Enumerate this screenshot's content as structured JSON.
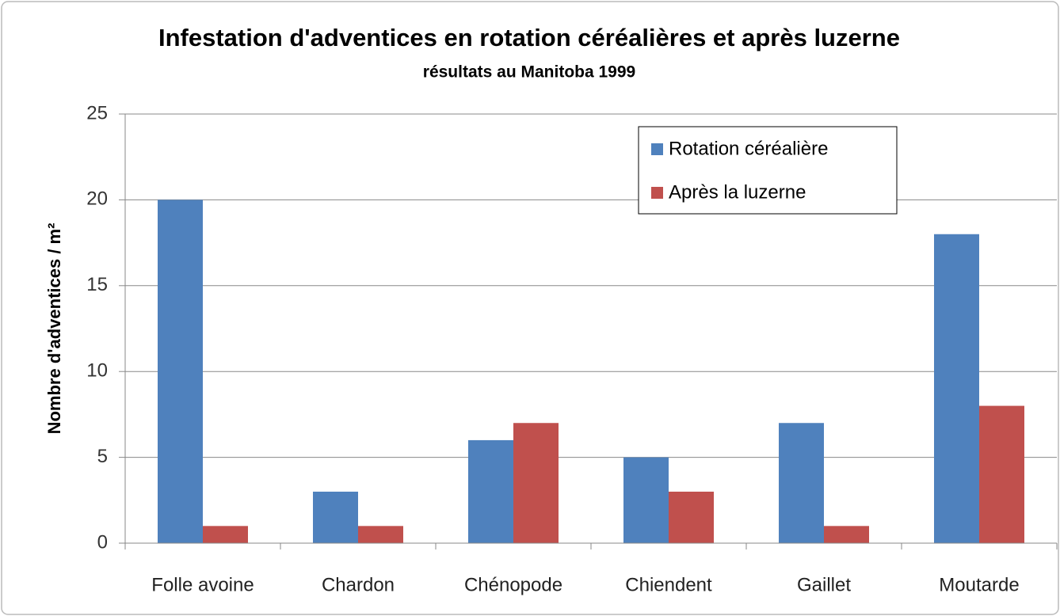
{
  "chart_data": {
    "type": "bar",
    "title": "Infestation d'adventices en rotation céréalières et après luzerne",
    "subtitle": "résultats  au Manitoba 1999",
    "y_label": "Nombre d'adventices / m²",
    "categories": [
      "Folle avoine",
      "Chardon",
      "Chénopode",
      "Chiendent",
      "Gaillet",
      "Moutarde"
    ],
    "series": [
      {
        "name": "Rotation céréalière",
        "color": "#4f81bd",
        "values": [
          20,
          3,
          6,
          5,
          7,
          18
        ]
      },
      {
        "name": "Après la luzerne",
        "color": "#c0504d",
        "values": [
          1,
          1,
          7,
          3,
          1,
          8
        ]
      }
    ],
    "ylim": [
      0,
      25
    ],
    "yticks": [
      0,
      5,
      10,
      15,
      20,
      25
    ],
    "grid": true,
    "legend": "upper right"
  }
}
